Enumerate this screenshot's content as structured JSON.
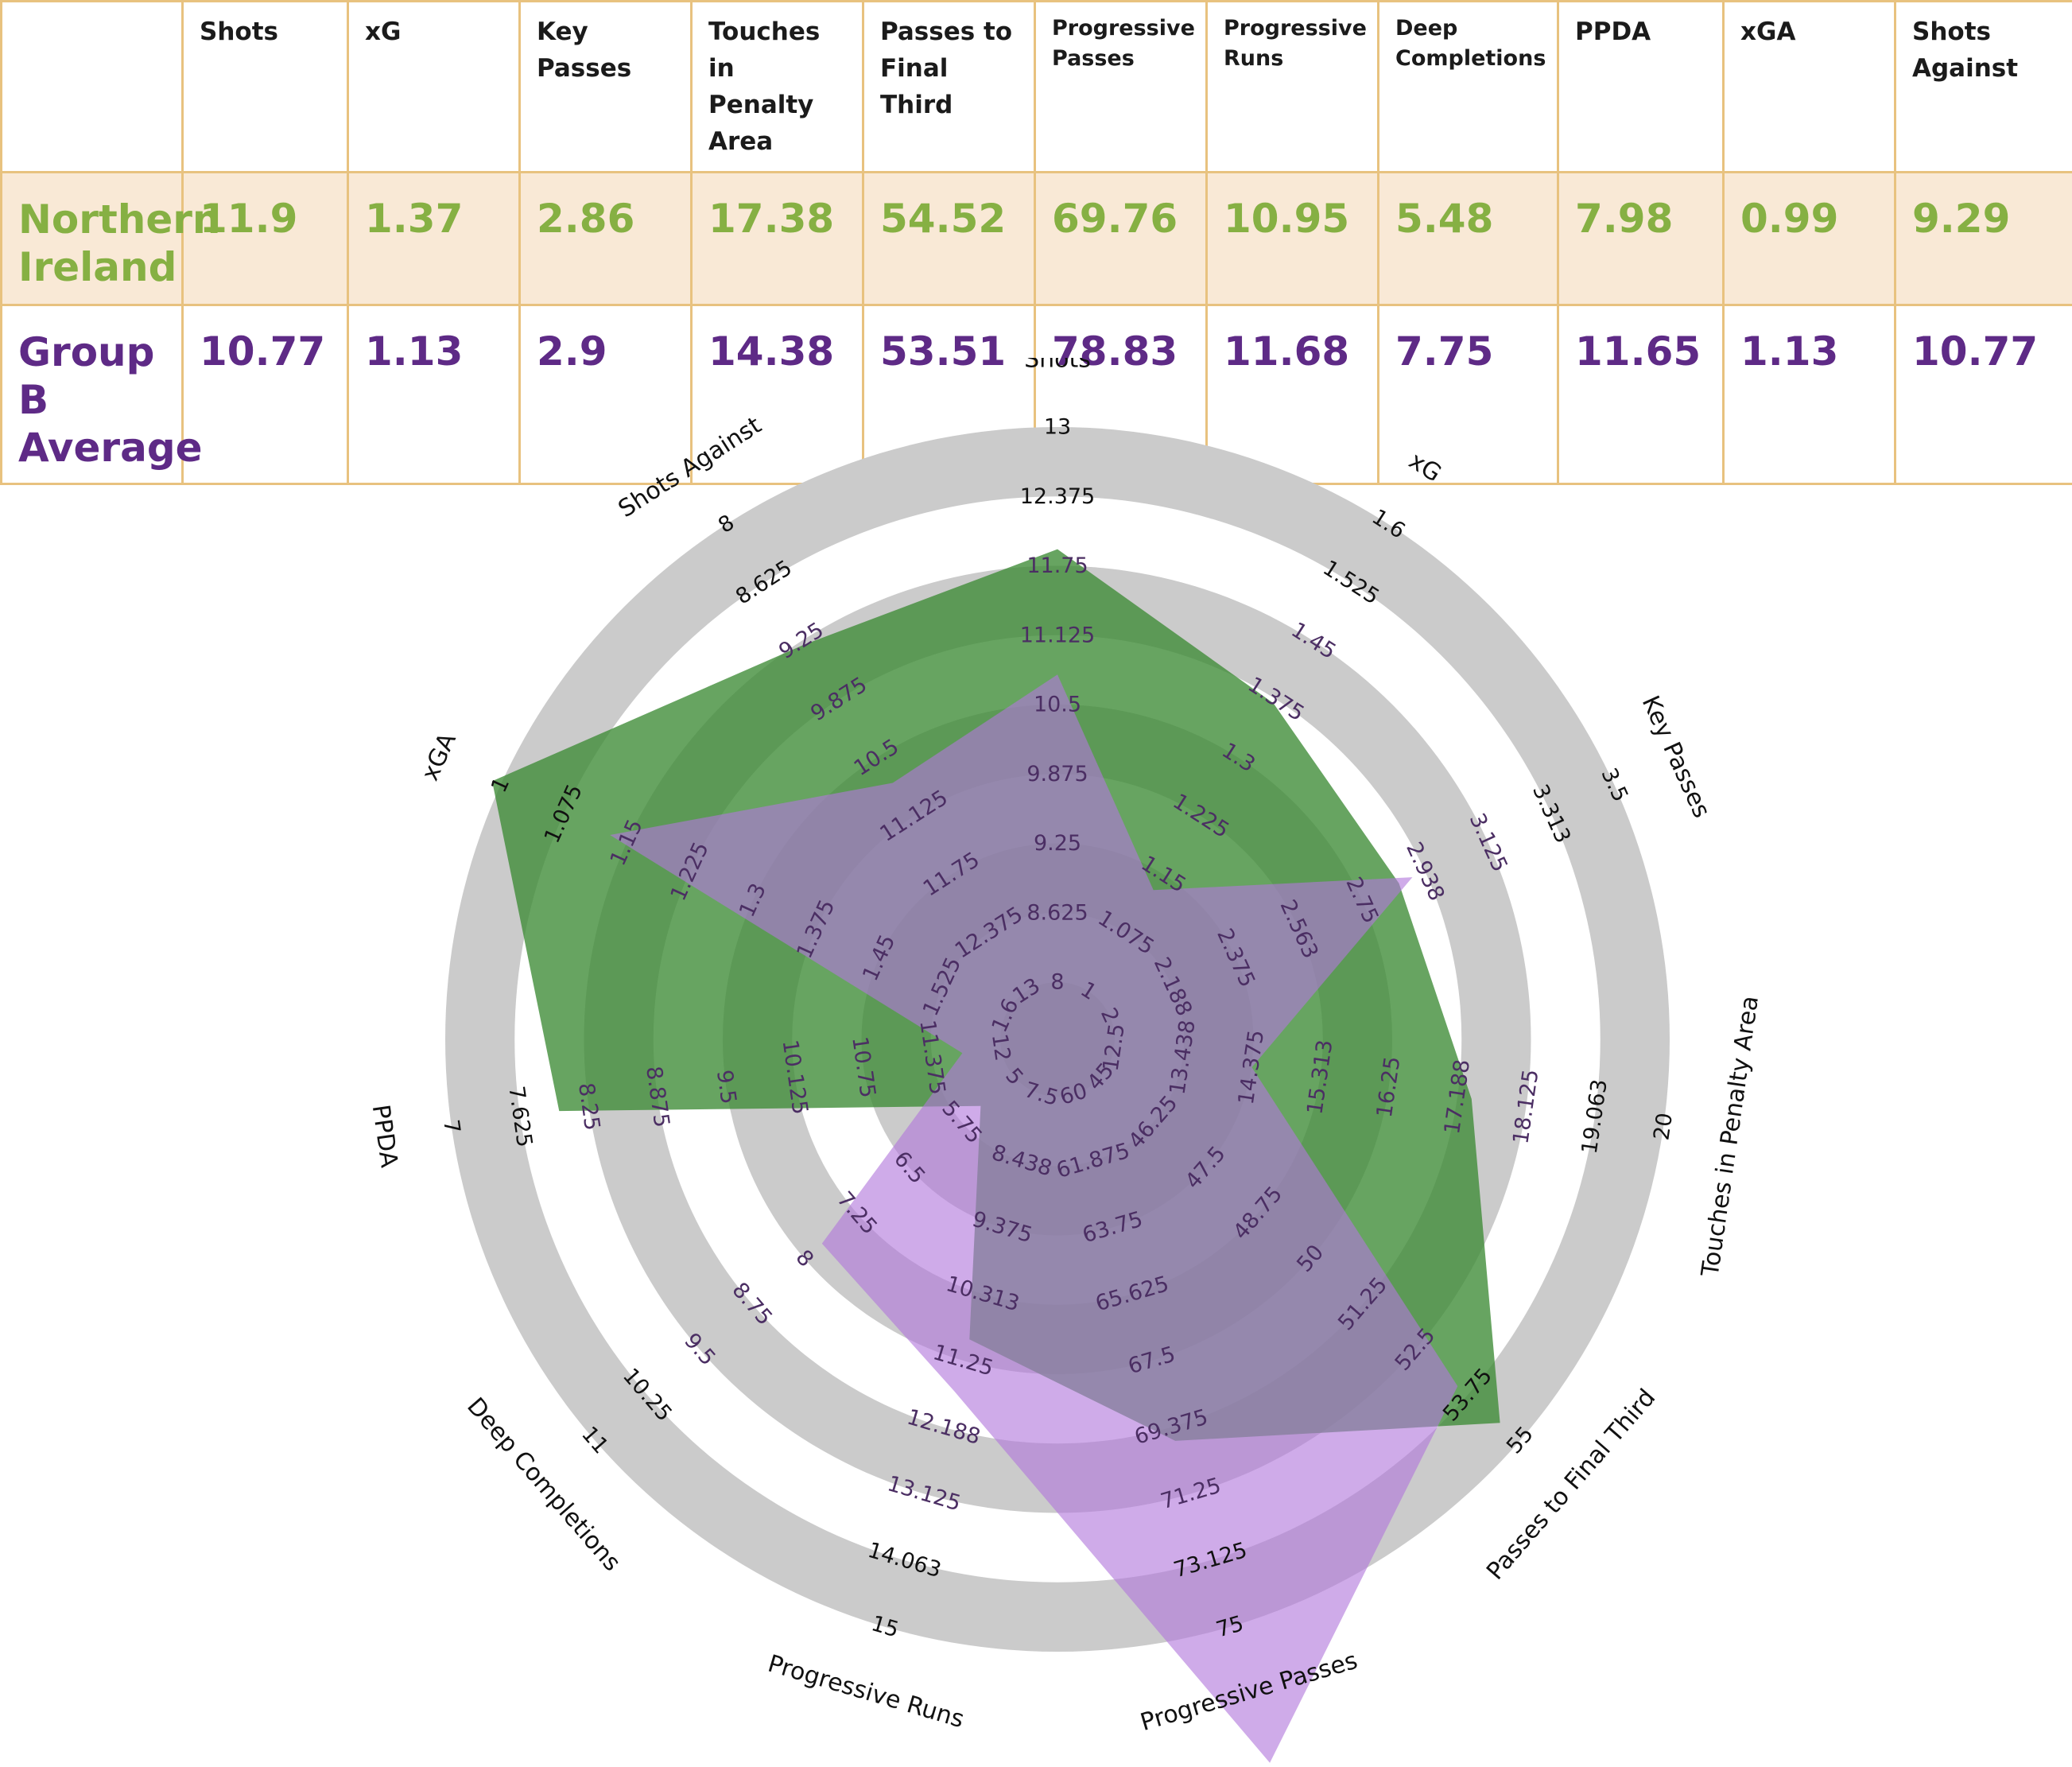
{
  "table": {
    "columns": [
      "",
      "Shots",
      "xG",
      "Key Passes",
      "Touches in Penalty Area",
      "Passes to Final Third",
      "Progressive Passes",
      "Progressive Runs",
      "Deep Completions",
      "PPDA",
      "xGA",
      "Shots Against"
    ],
    "rows": [
      {
        "team": "Northern Ireland",
        "values": [
          "11.9",
          "1.37",
          "2.86",
          "17.38",
          "54.52",
          "69.76",
          "10.95",
          "5.48",
          "7.98",
          "0.99",
          "9.29"
        ]
      },
      {
        "team": "Group B Average",
        "values": [
          "10.77",
          "1.13",
          "2.9",
          "14.38",
          "53.51",
          "78.83",
          "11.68",
          "7.75",
          "11.65",
          "1.13",
          "10.77"
        ]
      }
    ]
  },
  "colors": {
    "northern_ireland": "#86b043",
    "group_avg": "#5e2a86",
    "ni_fill": "#3c8a34",
    "avg_fill": "#b277dc",
    "ring": "#cbcbcb"
  },
  "chart_data": {
    "type": "radar",
    "axes": [
      {
        "name": "Shots",
        "ticks": [
          "8",
          "8.625",
          "9.25",
          "9.875",
          "10.5",
          "11.125",
          "11.75",
          "12.375",
          "13"
        ],
        "min": 8,
        "max": 13
      },
      {
        "name": "xG",
        "ticks": [
          "1",
          "1.075",
          "1.15",
          "1.225",
          "1.3",
          "1.375",
          "1.45",
          "1.525",
          "1.6"
        ],
        "min": 1,
        "max": 1.6
      },
      {
        "name": "Key Passes",
        "ticks": [
          "2",
          "2.188",
          "2.375",
          "2.563",
          "2.75",
          "2.938",
          "3.125",
          "3.313",
          "3.5"
        ],
        "min": 2,
        "max": 3.5
      },
      {
        "name": "Touches in Penalty Area",
        "ticks": [
          "12.5",
          "13.438",
          "14.375",
          "15.313",
          "16.25",
          "17.188",
          "18.125",
          "19.063",
          "20"
        ],
        "min": 12.5,
        "max": 20
      },
      {
        "name": "Passes to Final Third",
        "ticks": [
          "45",
          "46.25",
          "47.5",
          "48.75",
          "50",
          "51.25",
          "52.5",
          "53.75",
          "55"
        ],
        "min": 45,
        "max": 55
      },
      {
        "name": "Progressive Passes",
        "ticks": [
          "60",
          "61.875",
          "63.75",
          "65.625",
          "67.5",
          "69.375",
          "71.25",
          "73.125",
          "75"
        ],
        "min": 60,
        "max": 75
      },
      {
        "name": "Progressive Runs",
        "ticks": [
          "7.5",
          "8.438",
          "9.375",
          "10.313",
          "11.25",
          "12.188",
          "13.125",
          "14.063",
          "15"
        ],
        "min": 7.5,
        "max": 15
      },
      {
        "name": "Deep Completions",
        "ticks": [
          "5",
          "5.75",
          "6.5",
          "7.25",
          "8",
          "8.75",
          "9.5",
          "10.25",
          "11"
        ],
        "min": 5,
        "max": 11
      },
      {
        "name": "PPDA",
        "ticks": [
          "12",
          "11.375",
          "10.75",
          "10.125",
          "9.5",
          "8.875",
          "8.25",
          "7.625",
          "7"
        ],
        "min": 12,
        "max": 7
      },
      {
        "name": "xGA",
        "ticks": [
          "1.6",
          "1.525",
          "1.45",
          "1.375",
          "1.3",
          "1.225",
          "1.15",
          "1.075",
          "1"
        ],
        "min": 1.6,
        "max": 1
      },
      {
        "name": "Shots Against",
        "ticks": [
          "13",
          "12.375",
          "11.75",
          "11.125",
          "10.5",
          "9.875",
          "9.25",
          "8.625",
          "8"
        ],
        "min": 13,
        "max": 8
      }
    ],
    "series": [
      {
        "name": "Northern Ireland",
        "values": [
          11.9,
          1.37,
          2.86,
          17.38,
          54.52,
          69.76,
          10.95,
          5.48,
          7.98,
          0.99,
          9.29
        ]
      },
      {
        "name": "Group B Average",
        "values": [
          10.77,
          1.13,
          2.9,
          14.38,
          53.51,
          78.83,
          11.68,
          7.75,
          11.65,
          1.13,
          10.77
        ]
      }
    ]
  }
}
